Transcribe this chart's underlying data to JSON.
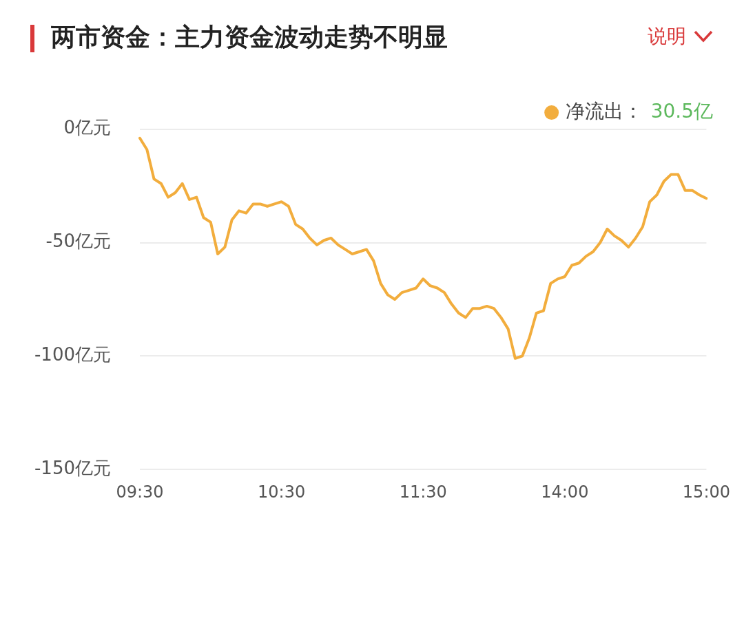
{
  "chart_data": {
    "type": "line",
    "title": "两市资金：主力资金波动走势不明显",
    "categories": [
      "09:30",
      null,
      null,
      null,
      null,
      null,
      null,
      null,
      null,
      null,
      null,
      null,
      null,
      null,
      null,
      null,
      null,
      null,
      null,
      null,
      "10:30",
      null,
      null,
      null,
      null,
      null,
      null,
      null,
      null,
      null,
      null,
      null,
      null,
      null,
      null,
      null,
      null,
      null,
      null,
      null,
      "11:30",
      null,
      null,
      null,
      null,
      null,
      null,
      null,
      null,
      null,
      null,
      null,
      null,
      null,
      null,
      null,
      null,
      null,
      null,
      null,
      "14:00",
      null,
      null,
      null,
      null,
      null,
      null,
      null,
      null,
      null,
      null,
      null,
      null,
      null,
      null,
      null,
      null,
      null,
      null,
      null,
      "15:00"
    ],
    "series": [
      {
        "name": "净流出：",
        "color": "#f2ad3d",
        "values": [
          -4,
          -9,
          -22,
          -24,
          -30,
          -28,
          -24,
          -31,
          -30,
          -39,
          -41,
          -55,
          -52,
          -40,
          -36,
          -37,
          -33,
          -33,
          -34,
          -33,
          -32,
          -34,
          -42,
          -44,
          -48,
          -51,
          -49,
          -48,
          -51,
          -53,
          -55,
          -54,
          -53,
          -58,
          -68,
          -73,
          -75,
          -72,
          -71,
          -70,
          -66,
          -69,
          -70,
          -72,
          -77,
          -81,
          -83,
          -79,
          -79,
          -78,
          -79,
          -83,
          -88,
          -101,
          -100,
          -92,
          -81,
          -80,
          -68,
          -66,
          -65,
          -60,
          -59,
          -56,
          -54,
          -50,
          -44,
          -47,
          -49,
          -52,
          -48,
          -43,
          -32,
          -29,
          -23,
          -20,
          -20,
          -27,
          -27,
          -29,
          -30.5
        ]
      }
    ],
    "ylim": [
      -150,
      0
    ],
    "yticks": [
      {
        "value": 0,
        "label": "0亿元"
      },
      {
        "value": -50,
        "label": "-50亿元"
      },
      {
        "value": -100,
        "label": "-100亿元"
      },
      {
        "value": -150,
        "label": "-150亿元"
      }
    ],
    "grid": "y",
    "legend": "top right",
    "marker": "none",
    "line_style": "solid",
    "annotations": [
      "说明",
      "30.5亿"
    ]
  }
}
